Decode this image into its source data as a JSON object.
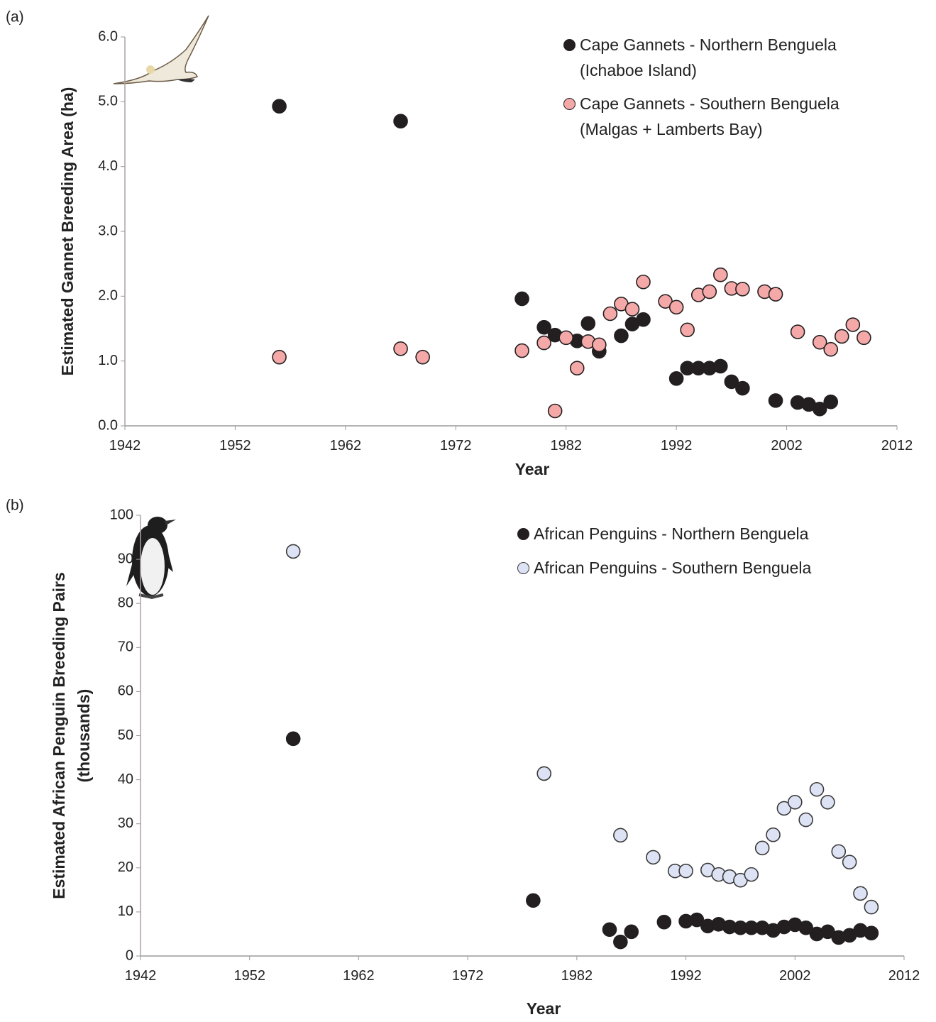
{
  "chart_data": [
    {
      "type": "scatter",
      "panel_label": "(a)",
      "xlabel": "Year",
      "ylabel": "Estimated Gannet Breeding Area (ha)",
      "xlim": [
        1942,
        2012
      ],
      "xticks": [
        1942,
        1952,
        1962,
        1972,
        1982,
        1992,
        2002,
        2012
      ],
      "ylim": [
        0,
        6
      ],
      "yticks": [
        {
          "value": 0,
          "label": "0.0"
        },
        {
          "value": 1,
          "label": "1.0"
        },
        {
          "value": 2,
          "label": "2.0"
        },
        {
          "value": 3,
          "label": "3.0"
        },
        {
          "value": 4,
          "label": "4.0"
        },
        {
          "value": 5,
          "label": "5.0"
        },
        {
          "value": 6,
          "label": "6.0"
        }
      ],
      "legend": "upper right",
      "series": [
        {
          "name": "Cape Gannets - Northern Benguela (Ichaboe Island)",
          "color": "#231f20",
          "edgecolor": "#231f20",
          "x": [
            1956,
            1967,
            1978,
            1980,
            1981,
            1983,
            1984,
            1985,
            1987,
            1988,
            1989,
            1992,
            1993,
            1994,
            1995,
            1996,
            1997,
            1998,
            2001,
            2003,
            2004,
            2005,
            2006
          ],
          "values": [
            4.93,
            4.7,
            1.96,
            1.52,
            1.4,
            1.31,
            1.58,
            1.15,
            1.39,
            1.57,
            1.64,
            0.73,
            0.89,
            0.89,
            0.89,
            0.92,
            0.68,
            0.58,
            0.39,
            0.36,
            0.33,
            0.26,
            0.37
          ]
        },
        {
          "name": "Cape Gannets - Southern Benguela (Malgas + Lamberts Bay)",
          "color": "#f4a9a8",
          "edgecolor": "#231f20",
          "x": [
            1956,
            1967,
            1969,
            1978,
            1980,
            1981,
            1982,
            1983,
            1984,
            1985,
            1986,
            1987,
            1988,
            1989,
            1991,
            1992,
            1993,
            1994,
            1995,
            1996,
            1997,
            1998,
            2000,
            2001,
            2003,
            2005,
            2006,
            2007,
            2008,
            2009
          ],
          "values": [
            1.06,
            1.19,
            1.06,
            1.16,
            1.28,
            0.23,
            1.36,
            0.89,
            1.3,
            1.25,
            1.73,
            1.88,
            1.8,
            2.22,
            1.92,
            1.83,
            1.48,
            2.02,
            2.07,
            2.33,
            2.12,
            2.11,
            2.07,
            2.03,
            1.45,
            1.29,
            1.18,
            1.38,
            1.56,
            1.36
          ]
        }
      ]
    },
    {
      "type": "scatter",
      "panel_label": "(b)",
      "xlabel": "Year",
      "ylabel": [
        "Estimated African Penguin Breeding Pairs",
        "(thousands)"
      ],
      "xlim": [
        1942,
        2012
      ],
      "xticks": [
        1942,
        1952,
        1962,
        1972,
        1982,
        1992,
        2002,
        2012
      ],
      "ylim": [
        0,
        100
      ],
      "yticks": [
        0,
        10,
        20,
        30,
        40,
        50,
        60,
        70,
        80,
        90,
        100
      ],
      "legend": "upper right",
      "series": [
        {
          "name": "African Penguins - Northern Benguela",
          "color": "#231f20",
          "edgecolor": "#231f20",
          "x": [
            1956,
            1978,
            1985,
            1986,
            1987,
            1990,
            1992,
            1993,
            1994,
            1995,
            1996,
            1997,
            1998,
            1999,
            2000,
            2001,
            2002,
            2003,
            2004,
            2005,
            2006,
            2007,
            2008,
            2009
          ],
          "values": [
            49.3,
            12.6,
            6.0,
            3.2,
            5.5,
            7.7,
            7.9,
            8.2,
            6.8,
            7.2,
            6.6,
            6.4,
            6.4,
            6.4,
            5.8,
            6.6,
            7.1,
            6.4,
            5.0,
            5.5,
            4.2,
            4.7,
            5.8,
            5.2
          ]
        },
        {
          "name": "African Penguins - Southern Benguela",
          "color": "#dde3f5",
          "edgecolor": "#3a3a3a",
          "x": [
            1956,
            1979,
            1986,
            1989,
            1991,
            1992,
            1994,
            1995,
            1996,
            1997,
            1998,
            1999,
            2000,
            2001,
            2002,
            2003,
            2004,
            2005,
            2006,
            2007,
            2008,
            2009
          ],
          "values": [
            91.8,
            41.4,
            27.4,
            22.4,
            19.3,
            19.3,
            19.5,
            18.5,
            18.0,
            17.2,
            18.5,
            24.5,
            27.5,
            33.5,
            34.9,
            30.9,
            37.8,
            34.9,
            23.7,
            21.3,
            14.2,
            11.1
          ]
        }
      ]
    }
  ]
}
